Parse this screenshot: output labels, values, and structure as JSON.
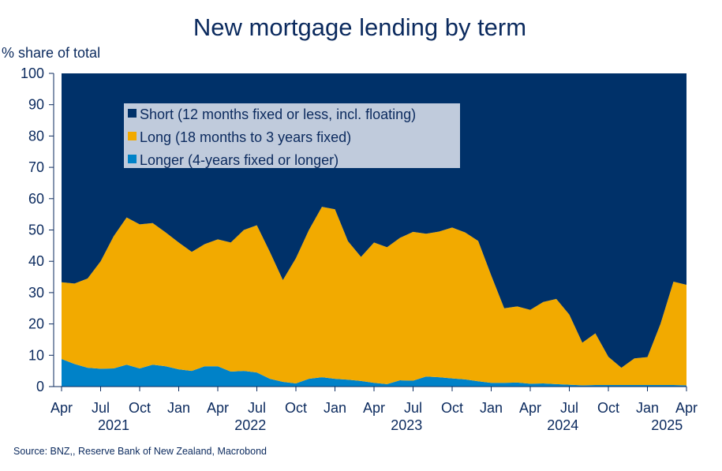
{
  "chart_data": {
    "type": "area",
    "stacked": true,
    "title": "New mortgage lending by term",
    "ylabel": "% share of total",
    "ylim": [
      0,
      100
    ],
    "yticks": [
      0,
      10,
      20,
      30,
      40,
      50,
      60,
      70,
      80,
      90,
      100
    ],
    "x": [
      "2021-04",
      "2021-05",
      "2021-06",
      "2021-07",
      "2021-08",
      "2021-09",
      "2021-10",
      "2021-11",
      "2021-12",
      "2022-01",
      "2022-02",
      "2022-03",
      "2022-04",
      "2022-05",
      "2022-06",
      "2022-07",
      "2022-08",
      "2022-09",
      "2022-10",
      "2022-11",
      "2022-12",
      "2023-01",
      "2023-02",
      "2023-03",
      "2023-04",
      "2023-05",
      "2023-06",
      "2023-07",
      "2023-08",
      "2023-09",
      "2023-10",
      "2023-11",
      "2023-12",
      "2024-01",
      "2024-02",
      "2024-03",
      "2024-04",
      "2024-05",
      "2024-06",
      "2024-07",
      "2024-08",
      "2024-09",
      "2024-10",
      "2024-11",
      "2024-12",
      "2025-01",
      "2025-02",
      "2025-03",
      "2025-04"
    ],
    "x_tick_months": [
      "Apr",
      "Jul",
      "Oct",
      "Jan",
      "Apr",
      "Jul",
      "Oct",
      "Jan",
      "Apr",
      "Jul",
      "Oct",
      "Jan",
      "Apr",
      "Jul",
      "Oct",
      "Jan",
      "Apr"
    ],
    "x_tick_years": [
      "2021",
      "2022",
      "2023",
      "2024",
      "2025"
    ],
    "series": [
      {
        "name": "Short (12 months fixed or less, incl. floating)",
        "color": "#003169",
        "values": [
          66.7,
          67.1,
          65.5,
          60.0,
          52.0,
          46.0,
          48.2,
          47.8,
          50.8,
          54.0,
          57.0,
          54.5,
          53.0,
          54.0,
          50.0,
          48.5,
          57.0,
          66.0,
          59.0,
          50.0,
          42.6,
          43.4,
          53.6,
          58.6,
          54.0,
          55.5,
          52.5,
          50.6,
          51.2,
          50.5,
          49.2,
          50.8,
          53.5,
          64.5,
          75.0,
          74.4,
          75.5,
          73.0,
          72.0,
          77.0,
          86.0,
          83.0,
          90.5,
          94.0,
          91.0,
          90.6,
          80.0,
          66.5,
          67.5
        ]
      },
      {
        "name": "Long (18 months to 3 years fixed)",
        "color": "#f2aa00",
        "values": [
          24.5,
          25.7,
          28.5,
          34.3,
          42.2,
          47.0,
          46.0,
          45.2,
          42.7,
          40.5,
          38.0,
          39.0,
          40.5,
          41.2,
          45.0,
          47.0,
          40.5,
          32.5,
          40.0,
          47.5,
          54.4,
          54.1,
          44.2,
          39.6,
          44.8,
          43.7,
          45.5,
          47.5,
          45.6,
          46.5,
          48.2,
          46.9,
          44.8,
          34.3,
          23.8,
          24.3,
          23.6,
          26.0,
          27.2,
          22.4,
          13.6,
          16.5,
          9.0,
          5.5,
          8.5,
          8.9,
          19.5,
          33.0,
          32.1
        ]
      },
      {
        "name": "Longer (4-years fixed or longer)",
        "color": "#0082c8",
        "values": [
          8.8,
          7.2,
          6.0,
          5.7,
          5.8,
          7.0,
          5.8,
          7.0,
          6.5,
          5.5,
          5.0,
          6.5,
          6.5,
          4.8,
          5.0,
          4.5,
          2.5,
          1.5,
          1.0,
          2.5,
          3.0,
          2.5,
          2.2,
          1.8,
          1.2,
          0.8,
          2.0,
          1.9,
          3.2,
          3.0,
          2.6,
          2.3,
          1.7,
          1.2,
          1.2,
          1.3,
          0.9,
          1.0,
          0.8,
          0.6,
          0.4,
          0.5,
          0.5,
          0.5,
          0.5,
          0.5,
          0.5,
          0.5,
          0.4
        ]
      }
    ],
    "legend_position": "top-left",
    "grid": false
  },
  "source": "Source: BNZ,, Reserve Bank of New Zealand, Macrobond"
}
